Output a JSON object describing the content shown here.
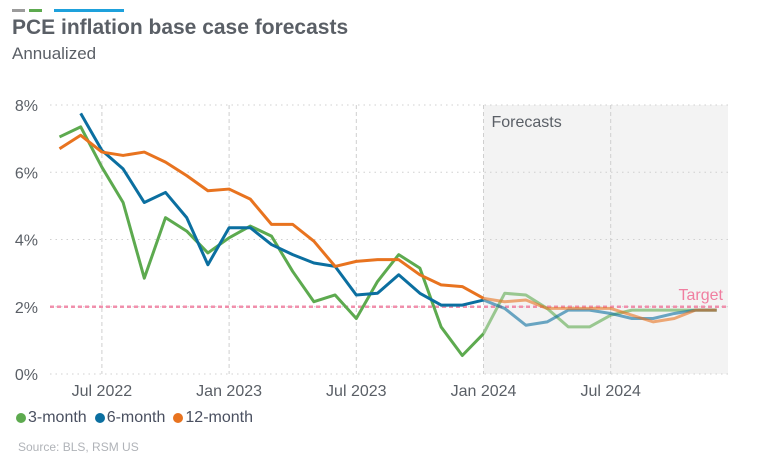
{
  "title": "PCE inflation base case forecasts",
  "subtitle": "Annualized",
  "source": "Source: BLS, RSM US",
  "colors": {
    "three_month": "#5daa4f",
    "six_month": "#0b6fa0",
    "twelve_month": "#e8731f",
    "target": "#f07ea0",
    "forecast_shade": "#f3f3f3",
    "header_bars": [
      "#9b9b9b",
      "#5daa4f",
      "#1ea1dc"
    ]
  },
  "chart_data": {
    "type": "line",
    "title": "PCE inflation base case forecasts",
    "subtitle": "Annualized",
    "ylim": [
      0,
      8
    ],
    "yticks": [
      {
        "v": 0,
        "label": "0%"
      },
      {
        "v": 2,
        "label": "2%"
      },
      {
        "v": 4,
        "label": "4%"
      },
      {
        "v": 6,
        "label": "6%"
      },
      {
        "v": 8,
        "label": "8%"
      }
    ],
    "xticks": [
      {
        "m": "2022-07",
        "label": "Jul 2022"
      },
      {
        "m": "2023-01",
        "label": "Jan 2023"
      },
      {
        "m": "2023-07",
        "label": "Jul 2023"
      },
      {
        "m": "2024-01",
        "label": "Jan 2024"
      },
      {
        "m": "2024-07",
        "label": "Jul 2024"
      }
    ],
    "x_start": "2022-05",
    "forecast_start": "2024-01",
    "forecast_label": "Forecasts",
    "target": {
      "value": 2,
      "label": "Target"
    },
    "grid": true,
    "legend_position": "bottom-left",
    "series": [
      {
        "name": "3-month",
        "key": "three_month",
        "start": "2022-05",
        "values": [
          7.05,
          7.35,
          6.15,
          5.1,
          2.85,
          4.65,
          4.25,
          3.6,
          4.05,
          4.4,
          4.1,
          3.05,
          2.15,
          2.35,
          1.65,
          2.75,
          3.55,
          3.15,
          1.4,
          0.55,
          1.2,
          2.4,
          2.35,
          1.95,
          1.4,
          1.4,
          1.75,
          1.9,
          1.9,
          1.9,
          1.9,
          1.9
        ]
      },
      {
        "name": "6-month",
        "key": "six_month",
        "start": "2022-06",
        "values": [
          7.75,
          6.65,
          6.1,
          5.1,
          5.4,
          4.65,
          3.25,
          4.35,
          4.35,
          3.85,
          3.55,
          3.3,
          3.2,
          2.35,
          2.4,
          2.95,
          2.4,
          2.05,
          2.05,
          2.2,
          1.95,
          1.45,
          1.55,
          1.9,
          1.9,
          1.8,
          1.65,
          1.65,
          1.8,
          1.9,
          1.9
        ]
      },
      {
        "name": "12-month",
        "key": "twelve_month",
        "start": "2022-05",
        "values": [
          6.7,
          7.1,
          6.6,
          6.5,
          6.6,
          6.3,
          5.9,
          5.45,
          5.5,
          5.2,
          4.45,
          4.45,
          3.95,
          3.2,
          3.35,
          3.4,
          3.4,
          2.95,
          2.65,
          2.6,
          2.25,
          2.15,
          2.2,
          1.95,
          1.95,
          1.95,
          1.95,
          1.75,
          1.55,
          1.65,
          1.9,
          1.9
        ]
      }
    ]
  }
}
